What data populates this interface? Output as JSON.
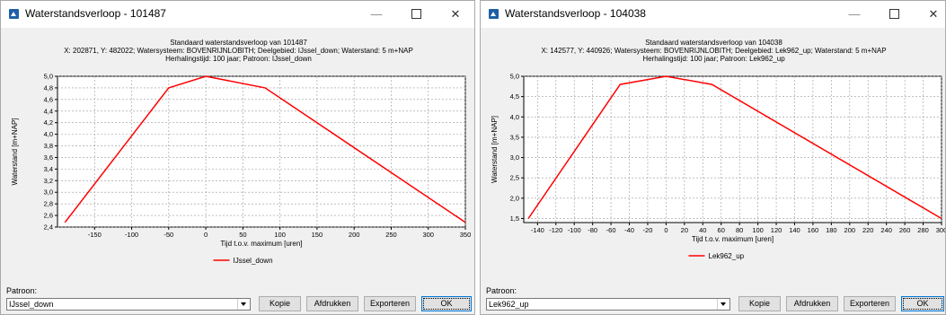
{
  "windows": [
    {
      "title": "Waterstandsverloop - 101487",
      "pattern_label": "Patroon:",
      "pattern_value": "IJssel_down",
      "buttons": {
        "copy": "Kopie",
        "print": "Afdrukken",
        "export": "Exporteren",
        "ok": "OK"
      },
      "chart_data": {
        "type": "line",
        "title_lines": [
          "Standaard waterstandsverloop van 101487",
          "X: 202871, Y: 482022; Watersysteem: BOVENRIJNLOBITH; Deelgebied: IJssel_down; Waterstand: 5 m+NAP",
          "Herhalingstijd: 100 jaar; Patroon: IJssel_down"
        ],
        "xlabel": "Tijd t.o.v. maximum [uren]",
        "ylabel": "Waterstand [m+NAP]",
        "xlim": [
          -200,
          350
        ],
        "ylim": [
          2.4,
          5.0
        ],
        "xticks": [
          -150,
          -100,
          -50,
          0,
          50,
          100,
          150,
          200,
          250,
          300,
          350
        ],
        "xtick_labels": [
          "-150",
          "-100",
          "-50",
          "0",
          "50",
          "100",
          "150",
          "200",
          "250",
          "300",
          "350"
        ],
        "yticks": [
          2.4,
          2.6,
          2.8,
          3.0,
          3.2,
          3.4,
          3.6,
          3.8,
          4.0,
          4.2,
          4.4,
          4.6,
          4.8,
          5.0
        ],
        "ytick_labels": [
          "2,4",
          "2,6",
          "2,8",
          "3,0",
          "3,2",
          "3,4",
          "3,6",
          "3,8",
          "4,0",
          "4,2",
          "4,4",
          "4,6",
          "4,8",
          "5,0"
        ],
        "grid": true,
        "legend_position": "bottom-center",
        "series": [
          {
            "name": "IJssel_down",
            "color": "#ff0000",
            "x": [
              -190,
              -50,
              0,
              80,
              350
            ],
            "y": [
              2.48,
              4.8,
              5.0,
              4.8,
              2.48
            ]
          }
        ]
      }
    },
    {
      "title": "Waterstandsverloop - 104038",
      "pattern_label": "Patroon:",
      "pattern_value": "Lek962_up",
      "buttons": {
        "copy": "Kopie",
        "print": "Afdrukken",
        "export": "Exporteren",
        "ok": "OK"
      },
      "chart_data": {
        "type": "line",
        "title_lines": [
          "Standaard waterstandsverloop van 104038",
          "X: 142577, Y: 440926; Watersysteem: BOVENRIJNLOBITH; Deelgebied: Lek962_up; Waterstand: 5 m+NAP",
          "Herhalingstijd: 100 jaar; Patroon: Lek962_up"
        ],
        "xlabel": "Tijd t.o.v. maximum [uren]",
        "ylabel": "Waterstand [m+NAP]",
        "xlim": [
          -155,
          300
        ],
        "ylim": [
          1.4,
          5.0
        ],
        "xticks": [
          -140,
          -120,
          -100,
          -80,
          -60,
          -40,
          -20,
          0,
          20,
          40,
          60,
          80,
          100,
          120,
          140,
          160,
          180,
          200,
          220,
          240,
          260,
          280,
          300
        ],
        "xtick_labels": [
          "-140",
          "-120",
          "-100",
          "-80",
          "-60",
          "-40",
          "-20",
          "0",
          "20",
          "40",
          "60",
          "80",
          "100",
          "120",
          "140",
          "160",
          "180",
          "200",
          "220",
          "240",
          "260",
          "280",
          "300"
        ],
        "yticks": [
          1.5,
          2.0,
          2.5,
          3.0,
          3.5,
          4.0,
          4.5,
          5.0
        ],
        "ytick_labels": [
          "1,5",
          "2,0",
          "2,5",
          "3,0",
          "3,5",
          "4,0",
          "4,5",
          "5,0"
        ],
        "grid": true,
        "legend_position": "bottom-center",
        "series": [
          {
            "name": "Lek962_up",
            "color": "#ff0000",
            "x": [
              -150,
              -50,
              0,
              50,
              300
            ],
            "y": [
              1.5,
              4.8,
              5.0,
              4.8,
              1.5
            ]
          }
        ]
      }
    }
  ],
  "icons": {
    "app": "app-icon",
    "minimize": "minimize-icon",
    "maximize": "maximize-icon",
    "close": "close-icon",
    "dropdown": "chevron-down-icon"
  }
}
